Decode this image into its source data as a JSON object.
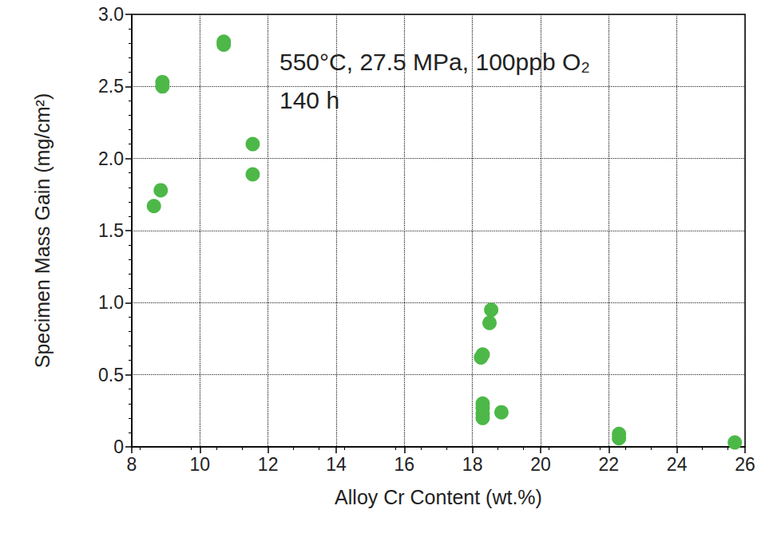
{
  "chart_data": {
    "type": "scatter",
    "x_label": "Alloy Cr Content (wt.%)",
    "y_label": "Specimen Mass Gain (mg/cm²)",
    "annotations": [
      "550°C, 27.5 MPa, 100ppb O₂",
      "140 h"
    ],
    "x": [
      8.65,
      8.85,
      8.9,
      8.9,
      10.7,
      10.7,
      11.55,
      11.55,
      18.55,
      18.5,
      18.3,
      18.25,
      18.3,
      18.3,
      18.3,
      18.3,
      18.85,
      22.3,
      22.3,
      25.7
    ],
    "values": [
      1.67,
      1.78,
      2.5,
      2.53,
      2.81,
      2.79,
      2.1,
      1.89,
      0.95,
      0.86,
      0.64,
      0.62,
      0.3,
      0.27,
      0.23,
      0.2,
      0.24,
      0.09,
      0.06,
      0.03
    ],
    "color": "#4db848",
    "marker": "circle",
    "xlim": [
      8,
      26
    ],
    "xticks": [
      8,
      10,
      12,
      14,
      16,
      18,
      20,
      22,
      24,
      26
    ],
    "ylim": [
      0,
      3
    ],
    "yticks": [
      0,
      0.5,
      {
        "value": 1,
        "label": "1.0"
      },
      1.5,
      {
        "value": 2,
        "label": "2.0"
      },
      2.5,
      {
        "value": 3,
        "label": "3.0"
      }
    ],
    "grid": true
  }
}
